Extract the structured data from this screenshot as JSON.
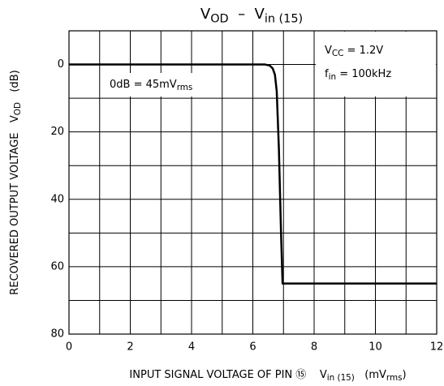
{
  "chart_data": {
    "type": "line",
    "title": [
      "V",
      {
        "sub": "OD"
      },
      "  –  V",
      {
        "sub": "in (15)"
      }
    ],
    "y_label": [
      "RECOVERED OUTPUT VOLTAGE   V",
      {
        "sub": "OD"
      },
      "   (dB)"
    ],
    "x_label": [
      "INPUT SIGNAL VOLTAGE OF PIN ⑮    V",
      {
        "sub": "in (15)"
      },
      "   (mV",
      {
        "sub": "rms"
      },
      ")"
    ],
    "annotations": [
      [
        "0dB = 45mV",
        {
          "sub": "rms"
        }
      ],
      [
        "V",
        {
          "sub": "CC"
        },
        " = 1.2V"
      ],
      [
        "f",
        {
          "sub": "in"
        },
        " = 100kHz"
      ]
    ],
    "x": [
      0,
      6.0,
      6.4,
      6.55,
      6.65,
      6.72,
      6.78,
      6.85,
      6.92,
      6.97,
      12
    ],
    "series": [
      {
        "name": "VOD",
        "color": "#000000",
        "values": [
          0,
          0,
          0,
          0.3,
          1.2,
          3,
          8,
          25,
          50,
          65,
          65
        ]
      }
    ],
    "xlim": [
      0,
      12
    ],
    "xticks": [
      0,
      2,
      4,
      6,
      8,
      10,
      12
    ],
    "xminor": [
      1,
      3,
      5,
      7,
      9,
      11
    ],
    "ylim": [
      80,
      -10
    ],
    "yticks": [
      0,
      20,
      40,
      60,
      80
    ],
    "yminor": [
      10,
      30,
      50,
      70
    ],
    "grid": true
  }
}
